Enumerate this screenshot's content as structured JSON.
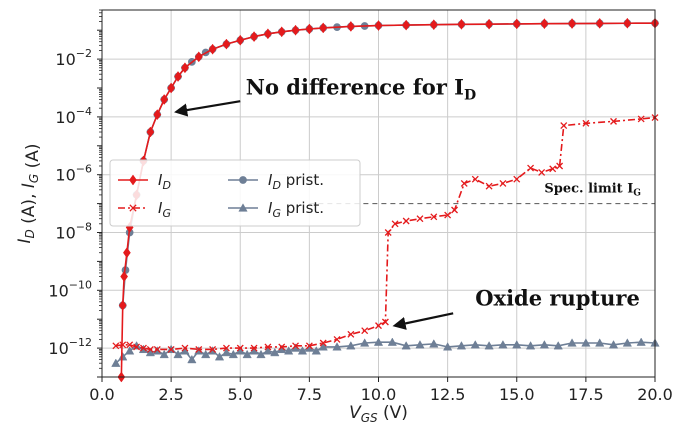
{
  "chart_data": {
    "type": "line",
    "x_scale": "linear",
    "y_scale": "log",
    "xlim": [
      0,
      20
    ],
    "ylim": [
      1e-13,
      0.5
    ],
    "grid": true,
    "legend_placement": "center-left",
    "xlabel": {
      "base": "V",
      "sub": "GS",
      "unit": " (V)"
    },
    "ylabel": {
      "parts": [
        {
          "t": "I",
          "sub": "D"
        },
        {
          "t": " (A), "
        },
        {
          "t": "I",
          "sub": "G"
        },
        {
          "t": " (A)"
        }
      ]
    },
    "x_ticks": [
      {
        "value": 0,
        "label": "0.0"
      },
      {
        "value": 2.5,
        "label": "2.5"
      },
      {
        "value": 5,
        "label": "5.0"
      },
      {
        "value": 7.5,
        "label": "7.5"
      },
      {
        "value": 10,
        "label": "10.0"
      },
      {
        "value": 12.5,
        "label": "12.5"
      },
      {
        "value": 15,
        "label": "15.0"
      },
      {
        "value": 17.5,
        "label": "17.5"
      },
      {
        "value": 20,
        "label": "20.0"
      }
    ],
    "y_ticks": [
      {
        "exp": -12,
        "base": "10",
        "sup": "−12"
      },
      {
        "exp": -10,
        "base": "10",
        "sup": "−10"
      },
      {
        "exp": -8,
        "base": "10",
        "sup": "−8"
      },
      {
        "exp": -6,
        "base": "10",
        "sup": "−6"
      },
      {
        "exp": -4,
        "base": "10",
        "sup": "−4"
      },
      {
        "exp": -2,
        "base": "10",
        "sup": "−2"
      }
    ],
    "series": [
      {
        "name": "I_D",
        "label_base": "I",
        "label_sub": "D",
        "label_suffix": "",
        "color": "#e41a1c",
        "line_style": "solid",
        "marker": "diamond",
        "points": [
          [
            0.7,
            1e-13
          ],
          [
            0.75,
            3e-11
          ],
          [
            0.8,
            3e-10
          ],
          [
            0.9,
            2e-09
          ],
          [
            1.0,
            1.5e-08
          ],
          [
            1.25,
            2e-07
          ],
          [
            1.5,
            3e-06
          ],
          [
            1.75,
            3e-05
          ],
          [
            2.0,
            0.00012
          ],
          [
            2.25,
            0.0004
          ],
          [
            2.5,
            0.001
          ],
          [
            2.75,
            0.0025
          ],
          [
            3.0,
            0.005
          ],
          [
            3.5,
            0.012
          ],
          [
            4.0,
            0.022
          ],
          [
            4.5,
            0.033
          ],
          [
            5.0,
            0.045
          ],
          [
            5.5,
            0.06
          ],
          [
            6.0,
            0.075
          ],
          [
            6.5,
            0.088
          ],
          [
            7.0,
            0.1
          ],
          [
            7.5,
            0.11
          ],
          [
            8.0,
            0.12
          ],
          [
            9.0,
            0.135
          ],
          [
            10.0,
            0.145
          ],
          [
            11.0,
            0.15
          ],
          [
            12.0,
            0.155
          ],
          [
            13.0,
            0.16
          ],
          [
            14.0,
            0.162
          ],
          [
            15.0,
            0.165
          ],
          [
            16.0,
            0.168
          ],
          [
            17.0,
            0.17
          ],
          [
            18.0,
            0.172
          ],
          [
            19.0,
            0.174
          ],
          [
            20.0,
            0.175
          ]
        ]
      },
      {
        "name": "I_G",
        "label_base": "I",
        "label_sub": "G",
        "label_suffix": "",
        "color": "#e41a1c",
        "line_style": "dashdot",
        "marker": "x",
        "points": [
          [
            0.5,
            1.2e-12
          ],
          [
            0.75,
            1.3e-12
          ],
          [
            1.0,
            1.3e-12
          ],
          [
            1.25,
            1.1e-12
          ],
          [
            1.5,
            1e-12
          ],
          [
            1.75,
            9e-13
          ],
          [
            2.0,
            9e-13
          ],
          [
            2.5,
            9e-13
          ],
          [
            3.0,
            1e-12
          ],
          [
            3.5,
            9e-13
          ],
          [
            4.0,
            9e-13
          ],
          [
            4.5,
            1e-12
          ],
          [
            5.0,
            1e-12
          ],
          [
            5.5,
            1e-12
          ],
          [
            6.0,
            1.1e-12
          ],
          [
            6.5,
            1.1e-12
          ],
          [
            7.0,
            1.2e-12
          ],
          [
            7.5,
            1.2e-12
          ],
          [
            8.0,
            1.5e-12
          ],
          [
            8.5,
            2e-12
          ],
          [
            9.0,
            3e-12
          ],
          [
            9.5,
            4e-12
          ],
          [
            10.0,
            6e-12
          ],
          [
            10.25,
            8e-12
          ],
          [
            10.35,
            1e-08
          ],
          [
            10.6,
            2e-08
          ],
          [
            11.0,
            2.5e-08
          ],
          [
            11.5,
            3e-08
          ],
          [
            12.0,
            3.5e-08
          ],
          [
            12.5,
            4e-08
          ],
          [
            12.75,
            6e-08
          ],
          [
            13.1,
            5e-07
          ],
          [
            13.5,
            7e-07
          ],
          [
            14.0,
            4e-07
          ],
          [
            14.5,
            5e-07
          ],
          [
            15.0,
            7e-07
          ],
          [
            15.5,
            1.7e-06
          ],
          [
            15.9,
            1.2e-06
          ],
          [
            16.3,
            1.6e-06
          ],
          [
            16.55,
            2e-06
          ],
          [
            16.7,
            5e-05
          ],
          [
            17.5,
            6e-05
          ],
          [
            18.5,
            7e-05
          ],
          [
            19.5,
            8.5e-05
          ],
          [
            20.0,
            9.5e-05
          ]
        ]
      },
      {
        "name": "I_D prist.",
        "label_base": "I",
        "label_sub": "D",
        "label_suffix": " prist.",
        "color": "#6e7f96",
        "line_style": "solid",
        "marker": "circle",
        "points": [
          [
            0.75,
            3e-11
          ],
          [
            0.85,
            5e-10
          ],
          [
            1.0,
            1e-08
          ],
          [
            1.25,
            2e-07
          ],
          [
            1.5,
            3e-06
          ],
          [
            1.75,
            3e-05
          ],
          [
            2.0,
            0.00012
          ],
          [
            2.25,
            0.0004
          ],
          [
            2.5,
            0.001
          ],
          [
            2.75,
            0.0025
          ],
          [
            3.0,
            0.005
          ],
          [
            3.25,
            0.008
          ],
          [
            3.5,
            0.012
          ],
          [
            3.75,
            0.017
          ],
          [
            4.0,
            0.022
          ],
          [
            4.5,
            0.033
          ],
          [
            5.0,
            0.045
          ],
          [
            5.5,
            0.06
          ],
          [
            6.0,
            0.075
          ],
          [
            6.5,
            0.088
          ],
          [
            7.0,
            0.1
          ],
          [
            7.5,
            0.11
          ],
          [
            8.0,
            0.12
          ],
          [
            8.5,
            0.128
          ],
          [
            9.0,
            0.135
          ],
          [
            9.5,
            0.14
          ],
          [
            10.0,
            0.145
          ],
          [
            11.0,
            0.15
          ],
          [
            12.0,
            0.155
          ],
          [
            13.0,
            0.16
          ],
          [
            14.0,
            0.162
          ],
          [
            15.0,
            0.165
          ],
          [
            16.0,
            0.168
          ],
          [
            17.0,
            0.17
          ],
          [
            18.0,
            0.172
          ],
          [
            19.0,
            0.174
          ],
          [
            20.0,
            0.175
          ]
        ]
      },
      {
        "name": "I_G prist.",
        "label_base": "I",
        "label_sub": "G",
        "label_suffix": " prist.",
        "color": "#6e7f96",
        "line_style": "solid",
        "marker": "triangle",
        "points": [
          [
            0.5,
            3e-13
          ],
          [
            0.75,
            5e-13
          ],
          [
            1.0,
            8e-13
          ],
          [
            1.25,
            1.2e-12
          ],
          [
            1.5,
            9e-13
          ],
          [
            1.75,
            7e-13
          ],
          [
            2.0,
            8e-13
          ],
          [
            2.25,
            6e-13
          ],
          [
            2.5,
            9e-13
          ],
          [
            2.75,
            6e-13
          ],
          [
            3.0,
            8e-13
          ],
          [
            3.25,
            4e-13
          ],
          [
            3.5,
            8e-13
          ],
          [
            3.75,
            6e-13
          ],
          [
            4.0,
            8e-13
          ],
          [
            4.25,
            5e-13
          ],
          [
            4.5,
            7e-13
          ],
          [
            4.75,
            6e-13
          ],
          [
            5.0,
            8e-13
          ],
          [
            5.25,
            6e-13
          ],
          [
            5.5,
            8e-13
          ],
          [
            5.75,
            6e-13
          ],
          [
            6.0,
            8e-13
          ],
          [
            6.25,
            7e-13
          ],
          [
            6.5,
            9e-13
          ],
          [
            6.75,
            8e-13
          ],
          [
            7.0,
            1e-12
          ],
          [
            7.25,
            8e-13
          ],
          [
            7.5,
            1e-12
          ],
          [
            7.75,
            8e-13
          ],
          [
            8.0,
            1.1e-12
          ],
          [
            8.5,
            1.1e-12
          ],
          [
            9.0,
            1.2e-12
          ],
          [
            9.5,
            1.5e-12
          ],
          [
            10.0,
            1.6e-12
          ],
          [
            10.5,
            1.6e-12
          ],
          [
            11.0,
            1.2e-12
          ],
          [
            11.5,
            1.3e-12
          ],
          [
            12.0,
            1.4e-12
          ],
          [
            12.5,
            1.1e-12
          ],
          [
            13.0,
            1.2e-12
          ],
          [
            13.5,
            1.3e-12
          ],
          [
            14.0,
            1.2e-12
          ],
          [
            14.5,
            1.3e-12
          ],
          [
            15.0,
            1.3e-12
          ],
          [
            15.5,
            1.2e-12
          ],
          [
            16.0,
            1.3e-12
          ],
          [
            16.5,
            1.2e-12
          ],
          [
            17.0,
            1.5e-12
          ],
          [
            17.5,
            1.5e-12
          ],
          [
            18.0,
            1.5e-12
          ],
          [
            18.5,
            1.3e-12
          ],
          [
            19.0,
            1.5e-12
          ],
          [
            19.5,
            1.6e-12
          ],
          [
            20.0,
            1.5e-12
          ]
        ]
      }
    ],
    "reference_lines": [
      {
        "type": "hline",
        "y": 1e-07,
        "x_from": 7.5,
        "x_to": 20,
        "style": "dashed",
        "color": "#555555"
      }
    ],
    "annotations": [
      {
        "id": "no-diff",
        "text_base": "No difference for I",
        "text_sub": "D",
        "text_x": 5.2,
        "text_y": 0.0006,
        "arrow_from": [
          5.0,
          0.00035
        ],
        "arrow_to": [
          2.7,
          0.00015
        ]
      },
      {
        "id": "oxide",
        "text_base": "Oxide rupture",
        "text_sub": "",
        "text_x": 13.5,
        "text_y": 3e-11,
        "arrow_from": [
          12.7,
          1.6e-11
        ],
        "arrow_to": [
          10.6,
          6e-12
        ]
      },
      {
        "id": "spec",
        "text_base": "Spec. limit I",
        "text_sub": "G",
        "text_x": 16.0,
        "text_y": 2.4e-07
      }
    ]
  }
}
